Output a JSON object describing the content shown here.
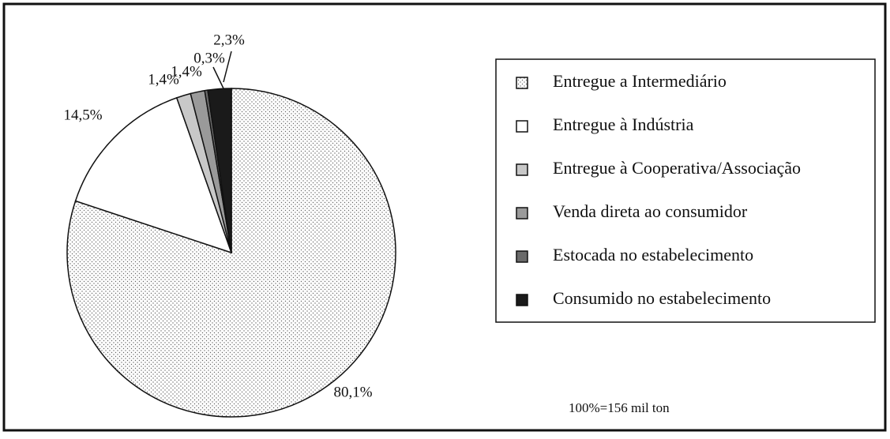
{
  "chart_data": {
    "type": "pie",
    "categories": [
      "Entregue a Intermediário",
      "Entregue à Indústria",
      "Entregue à Cooperativa/Associação",
      "Venda direta ao consumidor",
      "Estocada no estabelecimento",
      "Consumido no estabelecimento"
    ],
    "values": [
      80.1,
      14.5,
      1.4,
      1.4,
      0.3,
      2.3
    ],
    "value_labels": [
      "80,1%",
      "14,5%",
      "1,4%",
      "1,4%",
      "0,3%",
      "2,3%"
    ],
    "colors": [
      "#ffffff",
      "#ffffff",
      "#c8c8c8",
      "#9a9a9a",
      "#6a6a6a",
      "#1a1a1a"
    ],
    "patterns": [
      "dots",
      "none",
      "none",
      "none",
      "none",
      "none"
    ],
    "annotation": "100%=156 mil ton",
    "legend": "right"
  }
}
